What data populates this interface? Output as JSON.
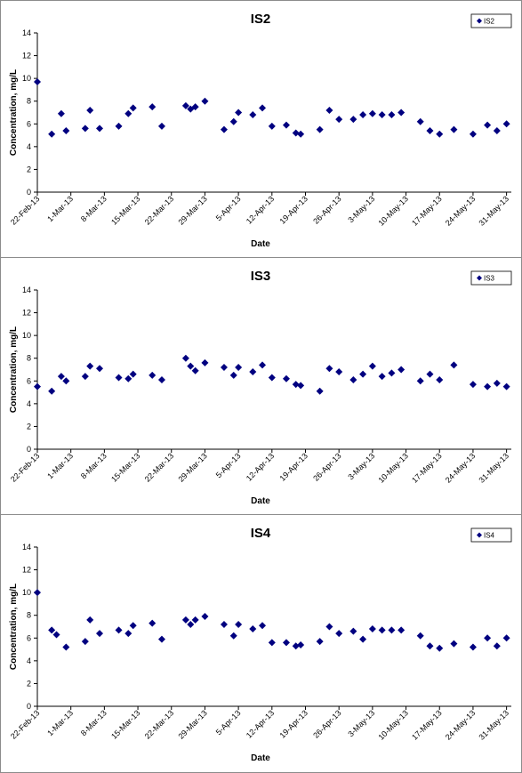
{
  "chart_data": [
    {
      "type": "scatter",
      "title": "IS2",
      "xlabel": "Date",
      "ylabel": "Concentration, mg/L",
      "ylim": [
        0,
        14
      ],
      "yticks": [
        0,
        2,
        4,
        6,
        8,
        10,
        12,
        14
      ],
      "xlim": [
        "2013-02-22",
        "2013-06-01"
      ],
      "xtick_labels": [
        "22-Feb-13",
        "1-Mar-13",
        "8-Mar-13",
        "15-Mar-13",
        "22-Mar-13",
        "29-Mar-13",
        "5-Apr-13",
        "12-Apr-13",
        "19-Apr-13",
        "26-Apr-13",
        "3-May-13",
        "10-May-13",
        "17-May-13",
        "24-May-13",
        "31-May-13"
      ],
      "legend": "top-right",
      "marker": "diamond",
      "color": "#000080",
      "series": [
        {
          "name": "IS2",
          "points": [
            {
              "x": "2013-02-22",
              "y": 9.7
            },
            {
              "x": "2013-02-25",
              "y": 5.1
            },
            {
              "x": "2013-02-27",
              "y": 6.9
            },
            {
              "x": "2013-02-28",
              "y": 5.4
            },
            {
              "x": "2013-03-04",
              "y": 5.6
            },
            {
              "x": "2013-03-05",
              "y": 7.2
            },
            {
              "x": "2013-03-07",
              "y": 5.6
            },
            {
              "x": "2013-03-11",
              "y": 5.8
            },
            {
              "x": "2013-03-13",
              "y": 6.9
            },
            {
              "x": "2013-03-14",
              "y": 7.4
            },
            {
              "x": "2013-03-18",
              "y": 7.5
            },
            {
              "x": "2013-03-20",
              "y": 5.8
            },
            {
              "x": "2013-03-25",
              "y": 7.6
            },
            {
              "x": "2013-03-26",
              "y": 7.3
            },
            {
              "x": "2013-03-27",
              "y": 7.5
            },
            {
              "x": "2013-03-29",
              "y": 8.0
            },
            {
              "x": "2013-04-02",
              "y": 5.5
            },
            {
              "x": "2013-04-04",
              "y": 6.2
            },
            {
              "x": "2013-04-05",
              "y": 7.0
            },
            {
              "x": "2013-04-08",
              "y": 6.8
            },
            {
              "x": "2013-04-10",
              "y": 7.4
            },
            {
              "x": "2013-04-12",
              "y": 5.8
            },
            {
              "x": "2013-04-15",
              "y": 5.9
            },
            {
              "x": "2013-04-17",
              "y": 5.2
            },
            {
              "x": "2013-04-18",
              "y": 5.1
            },
            {
              "x": "2013-04-22",
              "y": 5.5
            },
            {
              "x": "2013-04-24",
              "y": 7.2
            },
            {
              "x": "2013-04-26",
              "y": 6.4
            },
            {
              "x": "2013-04-29",
              "y": 6.4
            },
            {
              "x": "2013-05-01",
              "y": 6.8
            },
            {
              "x": "2013-05-03",
              "y": 6.9
            },
            {
              "x": "2013-05-05",
              "y": 6.8
            },
            {
              "x": "2013-05-07",
              "y": 6.8
            },
            {
              "x": "2013-05-09",
              "y": 7.0
            },
            {
              "x": "2013-05-13",
              "y": 6.2
            },
            {
              "x": "2013-05-15",
              "y": 5.4
            },
            {
              "x": "2013-05-17",
              "y": 5.1
            },
            {
              "x": "2013-05-20",
              "y": 5.5
            },
            {
              "x": "2013-05-24",
              "y": 5.1
            },
            {
              "x": "2013-05-27",
              "y": 5.9
            },
            {
              "x": "2013-05-29",
              "y": 5.4
            },
            {
              "x": "2013-05-31",
              "y": 6.0
            }
          ]
        }
      ]
    },
    {
      "type": "scatter",
      "title": "IS3",
      "xlabel": "Date",
      "ylabel": "Concentration, mg/L",
      "ylim": [
        0,
        14
      ],
      "yticks": [
        0,
        2,
        4,
        6,
        8,
        10,
        12,
        14
      ],
      "xlim": [
        "2013-02-22",
        "2013-06-01"
      ],
      "xtick_labels": [
        "22-Feb-13",
        "1-Mar-13",
        "8-Mar-13",
        "15-Mar-13",
        "22-Mar-13",
        "29-Mar-13",
        "5-Apr-13",
        "12-Apr-13",
        "19-Apr-13",
        "26-Apr-13",
        "3-May-13",
        "10-May-13",
        "17-May-13",
        "24-May-13",
        "31-May-13"
      ],
      "legend": "top-right",
      "marker": "diamond",
      "color": "#000080",
      "series": [
        {
          "name": "IS3",
          "points": [
            {
              "x": "2013-02-22",
              "y": 5.5
            },
            {
              "x": "2013-02-25",
              "y": 5.1
            },
            {
              "x": "2013-02-27",
              "y": 6.4
            },
            {
              "x": "2013-02-28",
              "y": 6.0
            },
            {
              "x": "2013-03-04",
              "y": 6.4
            },
            {
              "x": "2013-03-05",
              "y": 7.3
            },
            {
              "x": "2013-03-07",
              "y": 7.1
            },
            {
              "x": "2013-03-11",
              "y": 6.3
            },
            {
              "x": "2013-03-13",
              "y": 6.2
            },
            {
              "x": "2013-03-14",
              "y": 6.6
            },
            {
              "x": "2013-03-18",
              "y": 6.5
            },
            {
              "x": "2013-03-20",
              "y": 6.1
            },
            {
              "x": "2013-03-25",
              "y": 8.0
            },
            {
              "x": "2013-03-26",
              "y": 7.3
            },
            {
              "x": "2013-03-27",
              "y": 6.9
            },
            {
              "x": "2013-03-29",
              "y": 7.6
            },
            {
              "x": "2013-04-02",
              "y": 7.2
            },
            {
              "x": "2013-04-04",
              "y": 6.5
            },
            {
              "x": "2013-04-05",
              "y": 7.2
            },
            {
              "x": "2013-04-08",
              "y": 6.8
            },
            {
              "x": "2013-04-10",
              "y": 7.4
            },
            {
              "x": "2013-04-12",
              "y": 6.3
            },
            {
              "x": "2013-04-15",
              "y": 6.2
            },
            {
              "x": "2013-04-17",
              "y": 5.7
            },
            {
              "x": "2013-04-18",
              "y": 5.6
            },
            {
              "x": "2013-04-22",
              "y": 5.1
            },
            {
              "x": "2013-04-24",
              "y": 7.1
            },
            {
              "x": "2013-04-26",
              "y": 6.8
            },
            {
              "x": "2013-04-29",
              "y": 6.1
            },
            {
              "x": "2013-05-01",
              "y": 6.6
            },
            {
              "x": "2013-05-03",
              "y": 7.3
            },
            {
              "x": "2013-05-05",
              "y": 6.4
            },
            {
              "x": "2013-05-07",
              "y": 6.7
            },
            {
              "x": "2013-05-09",
              "y": 7.0
            },
            {
              "x": "2013-05-13",
              "y": 6.0
            },
            {
              "x": "2013-05-15",
              "y": 6.6
            },
            {
              "x": "2013-05-17",
              "y": 6.1
            },
            {
              "x": "2013-05-20",
              "y": 7.4
            },
            {
              "x": "2013-05-24",
              "y": 5.7
            },
            {
              "x": "2013-05-27",
              "y": 5.5
            },
            {
              "x": "2013-05-29",
              "y": 5.8
            },
            {
              "x": "2013-05-31",
              "y": 5.5
            }
          ]
        }
      ]
    },
    {
      "type": "scatter",
      "title": "IS4",
      "xlabel": "Date",
      "ylabel": "Concentration, mg/L",
      "ylim": [
        0,
        14
      ],
      "yticks": [
        0,
        2,
        4,
        6,
        8,
        10,
        12,
        14
      ],
      "xlim": [
        "2013-02-22",
        "2013-06-01"
      ],
      "xtick_labels": [
        "22-Feb-13",
        "1-Mar-13",
        "8-Mar-13",
        "15-Mar-13",
        "22-Mar-13",
        "29-Mar-13",
        "5-Apr-13",
        "12-Apr-13",
        "19-Apr-13",
        "26-Apr-13",
        "3-May-13",
        "10-May-13",
        "17-May-13",
        "24-May-13",
        "31-May-13"
      ],
      "legend": "top-right",
      "marker": "diamond",
      "color": "#000080",
      "series": [
        {
          "name": "IS4",
          "points": [
            {
              "x": "2013-02-22",
              "y": 10.0
            },
            {
              "x": "2013-02-25",
              "y": 6.7
            },
            {
              "x": "2013-02-26",
              "y": 6.3
            },
            {
              "x": "2013-02-28",
              "y": 5.2
            },
            {
              "x": "2013-03-04",
              "y": 5.7
            },
            {
              "x": "2013-03-05",
              "y": 7.6
            },
            {
              "x": "2013-03-07",
              "y": 6.4
            },
            {
              "x": "2013-03-11",
              "y": 6.7
            },
            {
              "x": "2013-03-13",
              "y": 6.4
            },
            {
              "x": "2013-03-14",
              "y": 7.1
            },
            {
              "x": "2013-03-18",
              "y": 7.3
            },
            {
              "x": "2013-03-20",
              "y": 5.9
            },
            {
              "x": "2013-03-25",
              "y": 7.6
            },
            {
              "x": "2013-03-26",
              "y": 7.2
            },
            {
              "x": "2013-03-27",
              "y": 7.6
            },
            {
              "x": "2013-03-29",
              "y": 7.9
            },
            {
              "x": "2013-04-02",
              "y": 7.2
            },
            {
              "x": "2013-04-04",
              "y": 6.2
            },
            {
              "x": "2013-04-05",
              "y": 7.2
            },
            {
              "x": "2013-04-08",
              "y": 6.8
            },
            {
              "x": "2013-04-10",
              "y": 7.1
            },
            {
              "x": "2013-04-12",
              "y": 5.6
            },
            {
              "x": "2013-04-15",
              "y": 5.6
            },
            {
              "x": "2013-04-17",
              "y": 5.3
            },
            {
              "x": "2013-04-18",
              "y": 5.4
            },
            {
              "x": "2013-04-22",
              "y": 5.7
            },
            {
              "x": "2013-04-24",
              "y": 7.0
            },
            {
              "x": "2013-04-26",
              "y": 6.4
            },
            {
              "x": "2013-04-29",
              "y": 6.6
            },
            {
              "x": "2013-05-01",
              "y": 5.9
            },
            {
              "x": "2013-05-03",
              "y": 6.8
            },
            {
              "x": "2013-05-05",
              "y": 6.7
            },
            {
              "x": "2013-05-07",
              "y": 6.7
            },
            {
              "x": "2013-05-09",
              "y": 6.7
            },
            {
              "x": "2013-05-13",
              "y": 6.2
            },
            {
              "x": "2013-05-15",
              "y": 5.3
            },
            {
              "x": "2013-05-17",
              "y": 5.1
            },
            {
              "x": "2013-05-20",
              "y": 5.5
            },
            {
              "x": "2013-05-24",
              "y": 5.2
            },
            {
              "x": "2013-05-27",
              "y": 6.0
            },
            {
              "x": "2013-05-29",
              "y": 5.3
            },
            {
              "x": "2013-05-31",
              "y": 6.0
            }
          ]
        }
      ]
    }
  ]
}
